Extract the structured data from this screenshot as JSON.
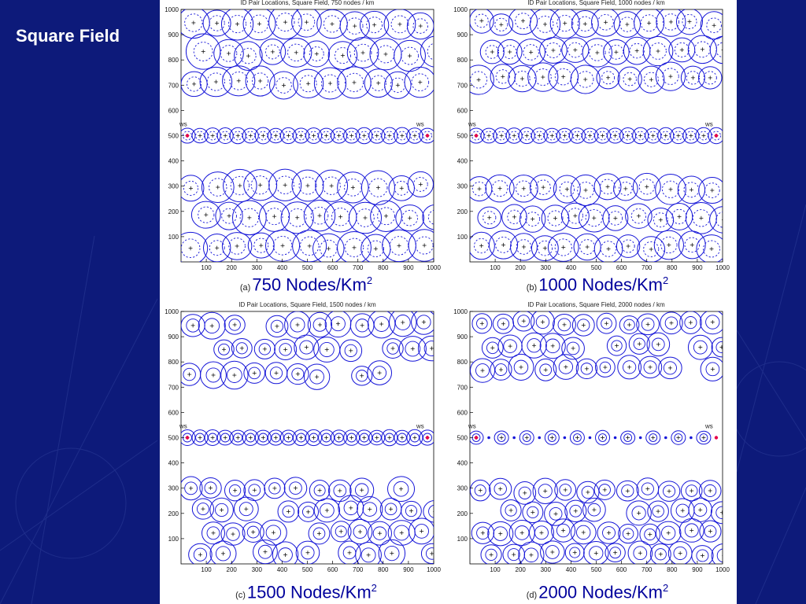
{
  "slide": {
    "title": "Square Field"
  },
  "colors": {
    "background": "#0d1a7a",
    "circle": "#1515d8",
    "ws_marker": "#e8004a"
  },
  "chart_data": [
    {
      "type": "scatter",
      "title": "ID Pair Locations, Square Field, 750 nodes / km",
      "caption_letter": "(a)",
      "caption": "750 Nodes/Km",
      "caption_sup": "2",
      "xlim": [
        0,
        1000
      ],
      "ylim": [
        0,
        1000
      ],
      "xticks": [
        "100",
        "200",
        "300",
        "400",
        "500",
        "600",
        "700",
        "800",
        "900",
        "1000"
      ],
      "yticks": [
        "100",
        "200",
        "300",
        "400",
        "500",
        "600",
        "700",
        "800",
        "900",
        "1000"
      ],
      "annotations": [
        {
          "text": "ws",
          "x": 25,
          "y": 500
        },
        {
          "text": "ws",
          "x": 975,
          "y": 500
        }
      ],
      "grid": false,
      "legend": "none"
    },
    {
      "type": "scatter",
      "title": "ID Pair Locations, Square Field, 1000 nodes / km",
      "caption_letter": "(b)",
      "caption": "1000 Nodes/Km",
      "caption_sup": "2",
      "xlim": [
        0,
        1000
      ],
      "ylim": [
        0,
        1000
      ],
      "xticks": [
        "100",
        "200",
        "300",
        "400",
        "500",
        "600",
        "700",
        "800",
        "900",
        "1000"
      ],
      "yticks": [
        "100",
        "200",
        "300",
        "400",
        "500",
        "600",
        "700",
        "800",
        "900",
        "1000"
      ],
      "annotations": [
        {
          "text": "ws",
          "x": 25,
          "y": 500
        },
        {
          "text": "ws",
          "x": 975,
          "y": 500
        }
      ],
      "grid": false,
      "legend": "none"
    },
    {
      "type": "scatter",
      "title": "ID Pair Locations, Square Field, 1500 nodes / km",
      "caption_letter": "(c)",
      "caption": "1500 Nodes/Km",
      "caption_sup": "2",
      "xlim": [
        0,
        1000
      ],
      "ylim": [
        0,
        1000
      ],
      "xticks": [
        "100",
        "200",
        "300",
        "400",
        "500",
        "600",
        "700",
        "800",
        "900",
        "1000"
      ],
      "yticks": [
        "100",
        "200",
        "300",
        "400",
        "500",
        "600",
        "700",
        "800",
        "900",
        "1000"
      ],
      "annotations": [
        {
          "text": "ws",
          "x": 25,
          "y": 500
        },
        {
          "text": "ws",
          "x": 975,
          "y": 500
        }
      ],
      "grid": false,
      "legend": "none"
    },
    {
      "type": "scatter",
      "title": "ID Pair Locations, Square Field, 2000 nodes / km",
      "caption_letter": "(d)",
      "caption": "2000 Nodes/Km",
      "caption_sup": "2",
      "xlim": [
        0,
        1000
      ],
      "ylim": [
        0,
        1000
      ],
      "xticks": [
        "100",
        "200",
        "300",
        "400",
        "500",
        "600",
        "700",
        "800",
        "900",
        "1000"
      ],
      "yticks": [
        "100",
        "200",
        "300",
        "400",
        "500",
        "600",
        "700",
        "800",
        "900",
        "1000"
      ],
      "annotations": [
        {
          "text": "ws",
          "x": 25,
          "y": 500
        },
        {
          "text": "ws",
          "x": 975,
          "y": 500
        }
      ],
      "grid": false,
      "legend": "none"
    }
  ]
}
